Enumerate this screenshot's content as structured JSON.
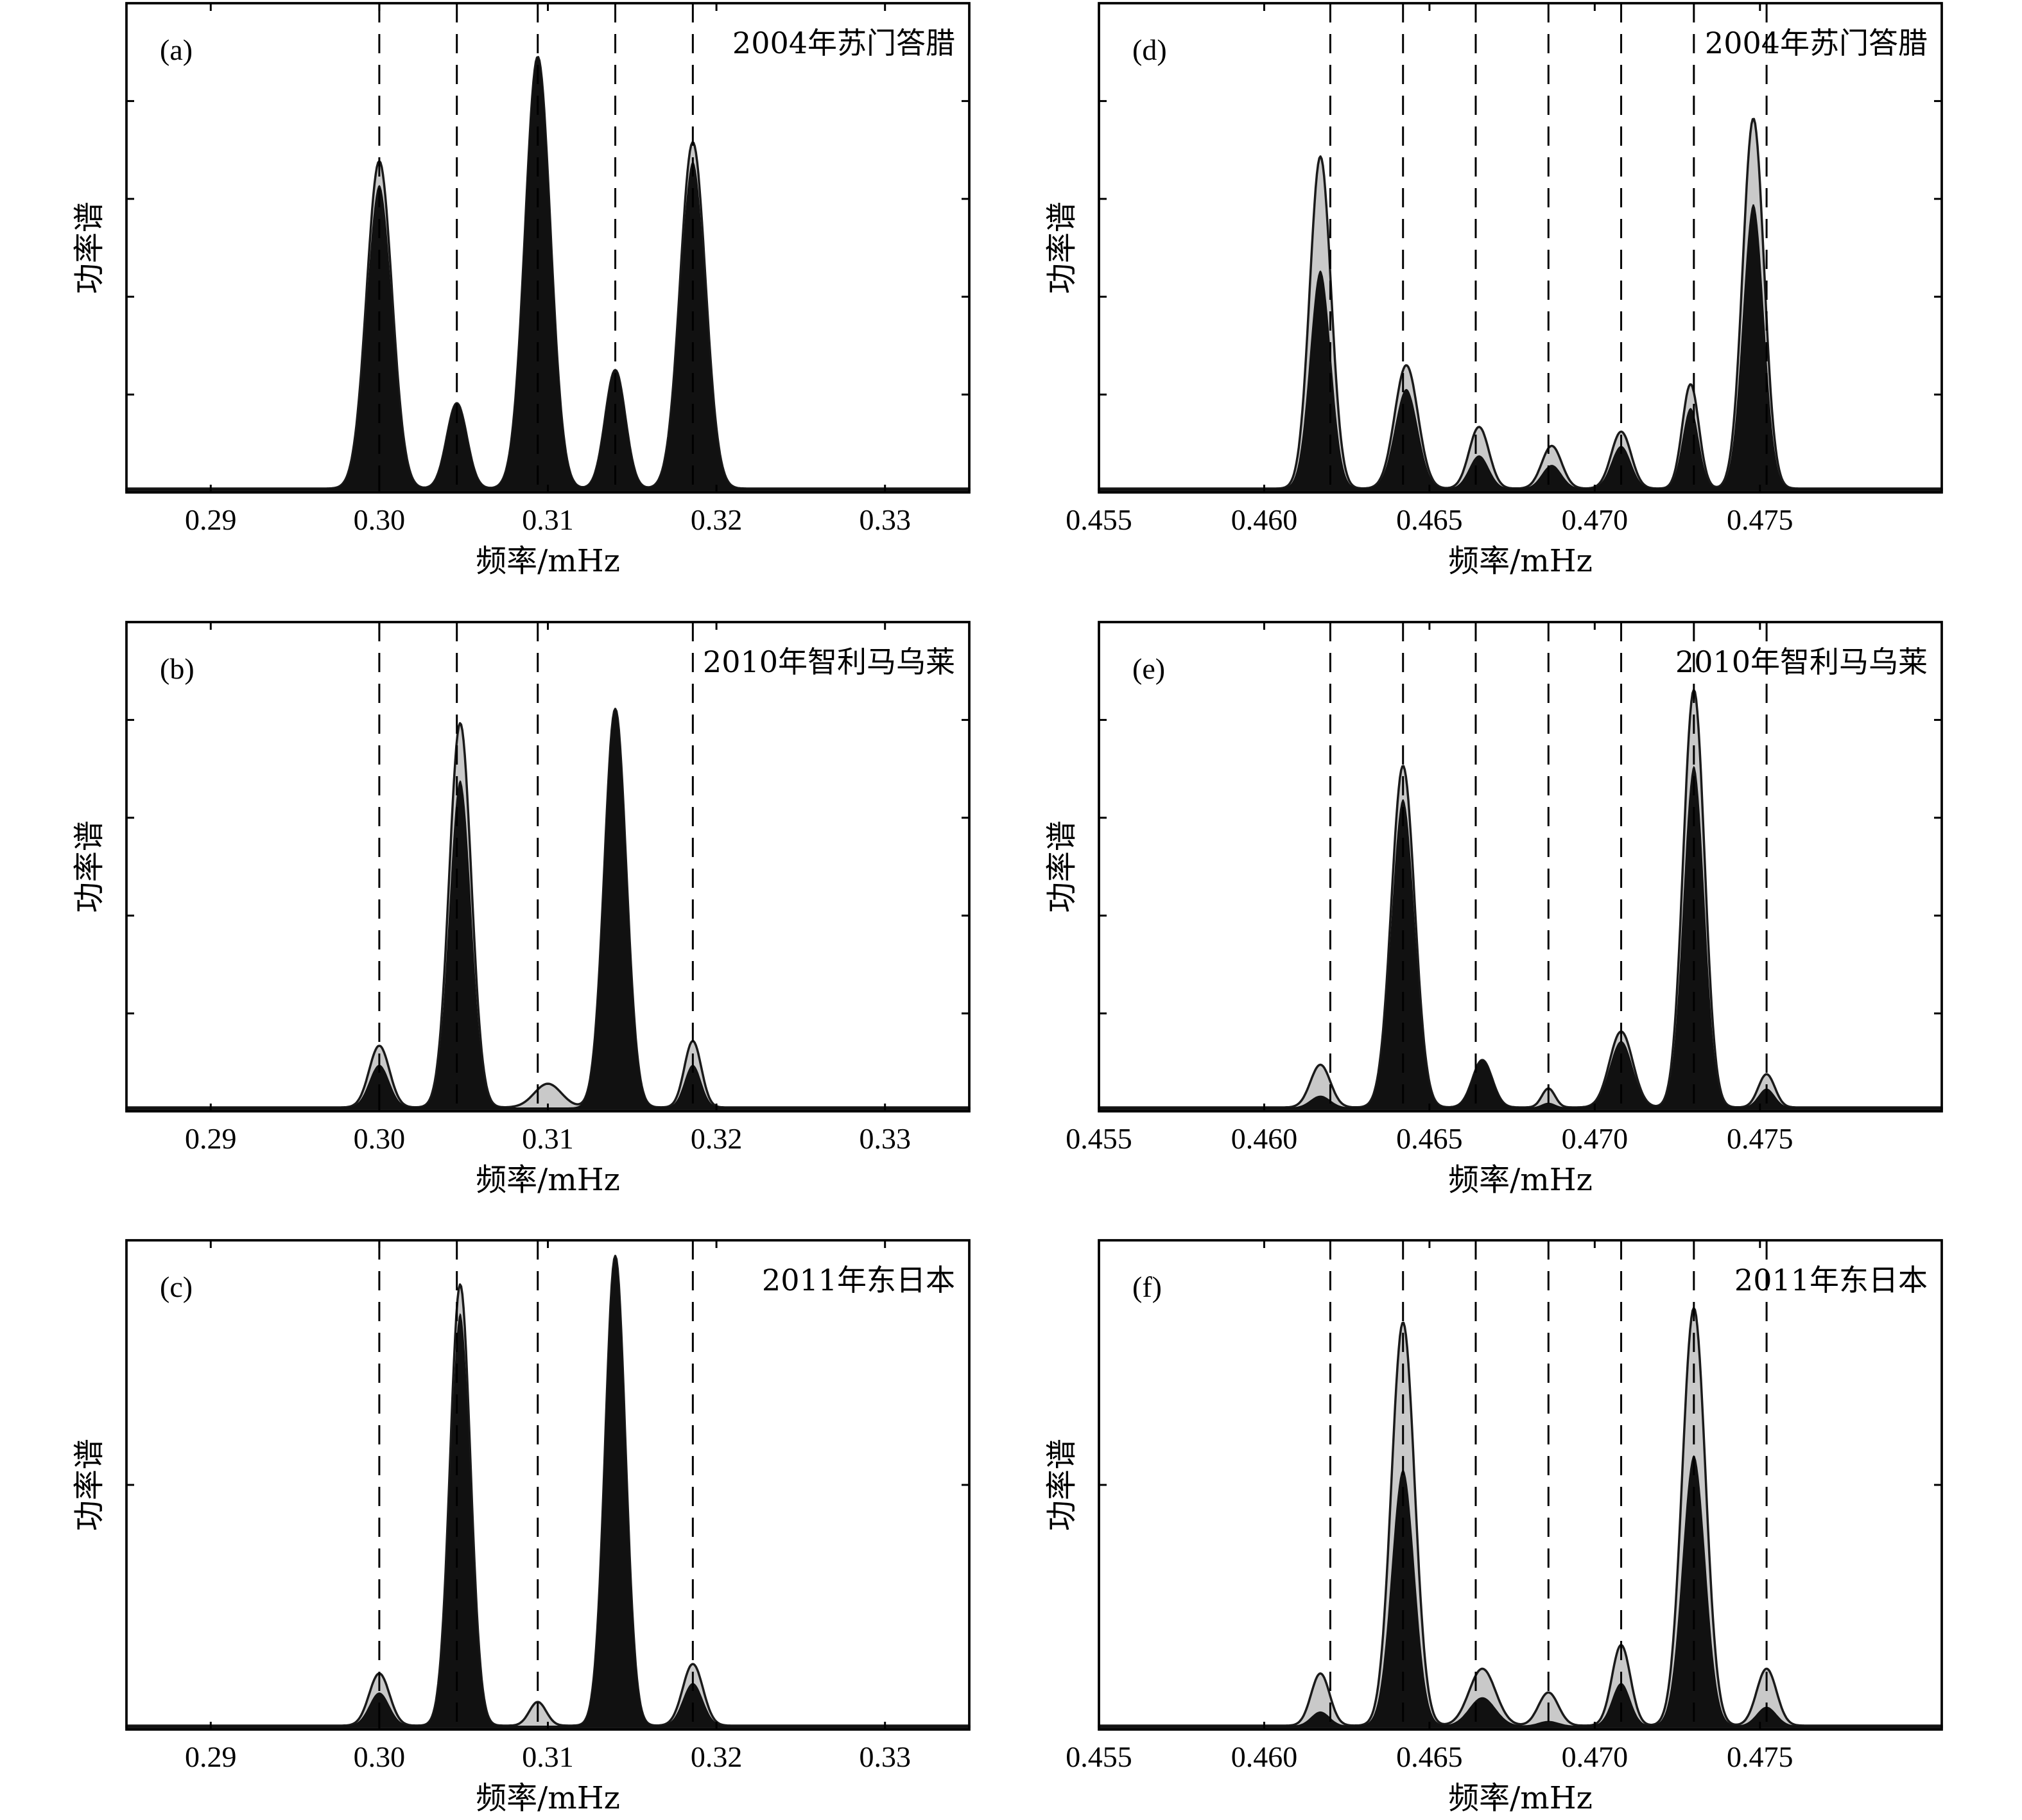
{
  "x_axis_label": "频率/mHz",
  "y_axis_label": "功率谱",
  "chart_data": [
    {
      "panel": "(a)",
      "event": "2004年苏门答腊",
      "type": "area",
      "xlim": [
        0.285,
        0.335
      ],
      "x_ticks": [
        "0.29",
        "0.30",
        "0.31",
        "0.32",
        "0.33"
      ],
      "y_ticks_count": 4,
      "reference_lines": [
        0.3,
        0.3046,
        0.3094,
        0.314,
        0.3186
      ],
      "peaks": [
        {
          "center": 0.3,
          "gray": 0.69,
          "black": 0.64,
          "width": 0.00075
        },
        {
          "center": 0.3046,
          "gray": 0.18,
          "black": 0.18,
          "width": 0.0006
        },
        {
          "center": 0.3094,
          "gray": 0.91,
          "black": 0.91,
          "width": 0.00075
        },
        {
          "center": 0.314,
          "gray": 0.25,
          "black": 0.25,
          "width": 0.0006
        },
        {
          "center": 0.3186,
          "gray": 0.73,
          "black": 0.69,
          "width": 0.00075
        }
      ]
    },
    {
      "panel": "(b)",
      "event": "2010年智利马乌莱",
      "type": "area",
      "xlim": [
        0.285,
        0.335
      ],
      "x_ticks": [
        "0.29",
        "0.30",
        "0.31",
        "0.32",
        "0.33"
      ],
      "y_ticks_count": 4,
      "reference_lines": [
        0.3,
        0.3046,
        0.3094,
        0.3186
      ],
      "peaks": [
        {
          "center": 0.3,
          "gray": 0.13,
          "black": 0.09,
          "width": 0.0006
        },
        {
          "center": 0.3048,
          "gray": 0.81,
          "black": 0.69,
          "width": 0.00065
        },
        {
          "center": 0.31,
          "gray": 0.05,
          "black": 0.0,
          "width": 0.0008
        },
        {
          "center": 0.314,
          "gray": 0.84,
          "black": 0.84,
          "width": 0.00065
        },
        {
          "center": 0.3186,
          "gray": 0.14,
          "black": 0.09,
          "width": 0.0005
        }
      ]
    },
    {
      "panel": "(c)",
      "event": "2011年东日本",
      "type": "area",
      "xlim": [
        0.285,
        0.335
      ],
      "x_ticks": [
        "0.29",
        "0.30",
        "0.31",
        "0.32",
        "0.33"
      ],
      "y_ticks_count": 1,
      "reference_lines": [
        0.3,
        0.3046,
        0.3094,
        0.3186
      ],
      "peaks": [
        {
          "center": 0.3,
          "gray": 0.11,
          "black": 0.07,
          "width": 0.0006
        },
        {
          "center": 0.3048,
          "gray": 0.93,
          "black": 0.87,
          "width": 0.0006
        },
        {
          "center": 0.3094,
          "gray": 0.05,
          "black": 0.0,
          "width": 0.0005
        },
        {
          "center": 0.314,
          "gray": 0.99,
          "black": 0.99,
          "width": 0.0006
        },
        {
          "center": 0.3186,
          "gray": 0.13,
          "black": 0.09,
          "width": 0.0006
        }
      ]
    },
    {
      "panel": "(d)",
      "event": "2004年苏门答腊",
      "type": "area",
      "xlim": [
        0.455,
        0.4805
      ],
      "x_ticks": [
        "0.455",
        "0.460",
        "0.465",
        "0.470",
        "0.475"
      ],
      "y_ticks_count": 4,
      "reference_lines": [
        0.462,
        0.4642,
        0.4664,
        0.4686,
        0.4708,
        0.473,
        0.4752
      ],
      "peaks": [
        {
          "center": 0.4617,
          "gray": 0.7,
          "black": 0.46,
          "width": 0.00032
        },
        {
          "center": 0.4643,
          "gray": 0.26,
          "black": 0.21,
          "width": 0.00035
        },
        {
          "center": 0.4665,
          "gray": 0.13,
          "black": 0.07,
          "width": 0.0003
        },
        {
          "center": 0.4687,
          "gray": 0.09,
          "black": 0.05,
          "width": 0.0003
        },
        {
          "center": 0.4708,
          "gray": 0.12,
          "black": 0.09,
          "width": 0.0003
        },
        {
          "center": 0.4729,
          "gray": 0.22,
          "black": 0.17,
          "width": 0.00025
        },
        {
          "center": 0.4748,
          "gray": 0.78,
          "black": 0.6,
          "width": 0.00032
        }
      ]
    },
    {
      "panel": "(e)",
      "event": "2010年智利马乌莱",
      "type": "area",
      "xlim": [
        0.455,
        0.4805
      ],
      "x_ticks": [
        "0.455",
        "0.460",
        "0.465",
        "0.470",
        "0.475"
      ],
      "y_ticks_count": 4,
      "reference_lines": [
        0.462,
        0.4642,
        0.4664,
        0.4686,
        0.4708,
        0.473,
        0.4752
      ],
      "peaks": [
        {
          "center": 0.4617,
          "gray": 0.09,
          "black": 0.025,
          "width": 0.0003
        },
        {
          "center": 0.4642,
          "gray": 0.72,
          "black": 0.65,
          "width": 0.00035
        },
        {
          "center": 0.4666,
          "gray": 0.1,
          "black": 0.1,
          "width": 0.0003
        },
        {
          "center": 0.4686,
          "gray": 0.04,
          "black": 0.01,
          "width": 0.0002
        },
        {
          "center": 0.4708,
          "gray": 0.16,
          "black": 0.14,
          "width": 0.00035
        },
        {
          "center": 0.473,
          "gray": 0.88,
          "black": 0.72,
          "width": 0.00032
        },
        {
          "center": 0.4752,
          "gray": 0.07,
          "black": 0.04,
          "width": 0.00025
        }
      ]
    },
    {
      "panel": "(f)",
      "event": "2011年东日本",
      "type": "area",
      "xlim": [
        0.455,
        0.4805
      ],
      "x_ticks": [
        "0.455",
        "0.460",
        "0.465",
        "0.470",
        "0.475"
      ],
      "y_ticks_count": 1,
      "reference_lines": [
        0.462,
        0.4642,
        0.4664,
        0.4686,
        0.4708,
        0.473,
        0.4752
      ],
      "peaks": [
        {
          "center": 0.4617,
          "gray": 0.11,
          "black": 0.03,
          "width": 0.00028
        },
        {
          "center": 0.4642,
          "gray": 0.85,
          "black": 0.54,
          "width": 0.00035
        },
        {
          "center": 0.4666,
          "gray": 0.12,
          "black": 0.06,
          "width": 0.0004
        },
        {
          "center": 0.4686,
          "gray": 0.07,
          "black": 0.01,
          "width": 0.0003
        },
        {
          "center": 0.4708,
          "gray": 0.17,
          "black": 0.09,
          "width": 0.00028
        },
        {
          "center": 0.473,
          "gray": 0.88,
          "black": 0.57,
          "width": 0.00035
        },
        {
          "center": 0.4752,
          "gray": 0.12,
          "black": 0.04,
          "width": 0.0003
        }
      ]
    }
  ]
}
